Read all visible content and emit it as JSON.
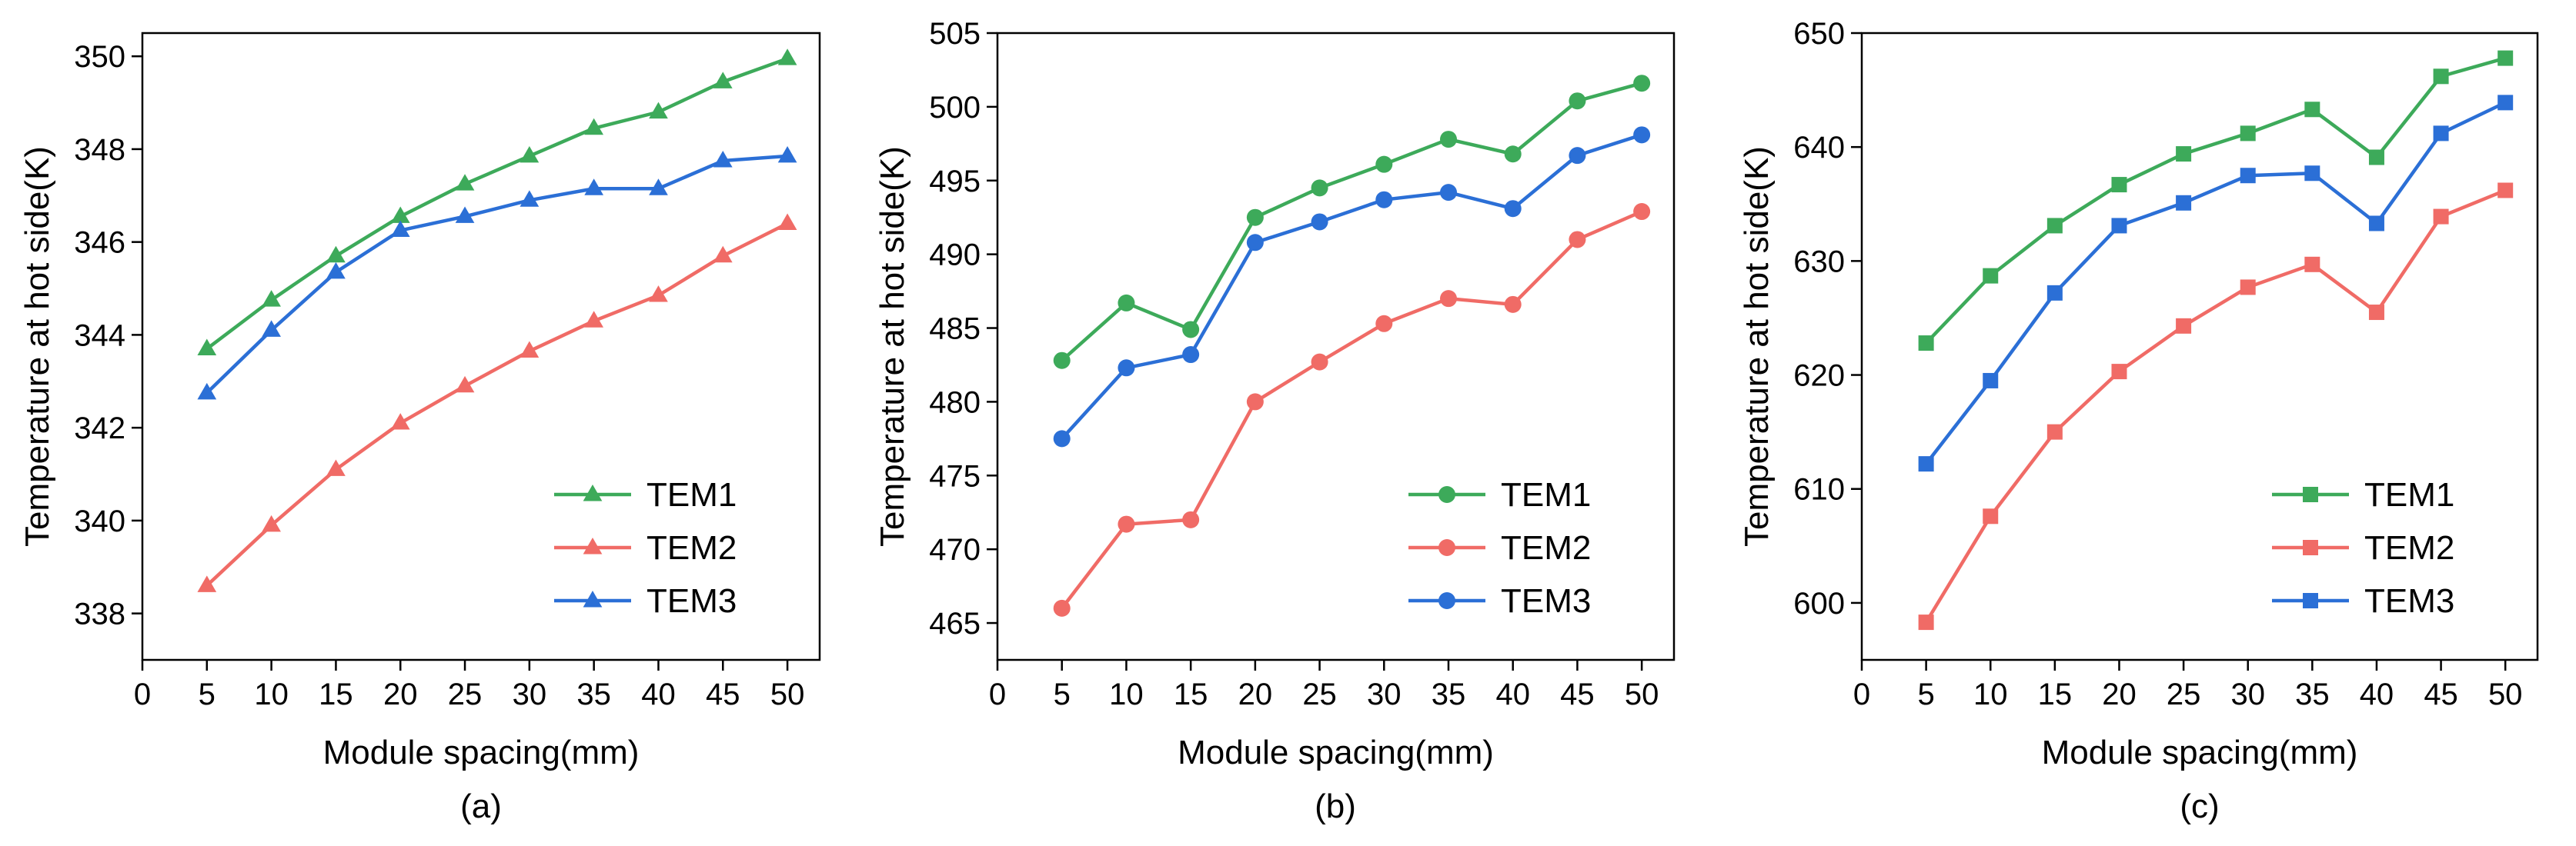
{
  "colors": {
    "TEM1": "#3daa5a",
    "TEM2": "#f06b66",
    "TEM3": "#2b6fd6"
  },
  "chart_data": [
    {
      "type": "line",
      "panel_label": "(a)",
      "xlabel": "Module spacing(mm)",
      "ylabel": "Temperature at hot side(K)",
      "marker": "triangle",
      "xlim": [
        0,
        52.5
      ],
      "xticks": [
        0,
        5,
        10,
        15,
        20,
        25,
        30,
        35,
        40,
        45,
        50
      ],
      "ylim": [
        337,
        350.5
      ],
      "yticks": [
        338,
        340,
        342,
        344,
        346,
        348,
        350
      ],
      "x": [
        5,
        10,
        15,
        20,
        25,
        30,
        35,
        40,
        45,
        50
      ],
      "series": [
        {
          "name": "TEM1",
          "color": "#3daa5a",
          "values": [
            343.7,
            344.75,
            345.7,
            346.55,
            347.25,
            347.85,
            348.45,
            348.8,
            349.45,
            349.95
          ]
        },
        {
          "name": "TEM2",
          "color": "#f06b66",
          "values": [
            338.6,
            339.9,
            341.1,
            342.1,
            342.9,
            343.65,
            344.3,
            344.85,
            345.7,
            346.4
          ]
        },
        {
          "name": "TEM3",
          "color": "#2b6fd6",
          "values": [
            342.75,
            344.1,
            345.35,
            346.25,
            346.55,
            346.9,
            347.15,
            347.15,
            347.75,
            347.85
          ]
        }
      ],
      "legend": "bottom-right"
    },
    {
      "type": "line",
      "panel_label": "(b)",
      "xlabel": "Module spacing(mm)",
      "ylabel": "Temperature at hot side(K)",
      "marker": "circle",
      "xlim": [
        0,
        52.5
      ],
      "xticks": [
        0,
        5,
        10,
        15,
        20,
        25,
        30,
        35,
        40,
        45,
        50
      ],
      "ylim": [
        462.5,
        505
      ],
      "yticks": [
        465,
        470,
        475,
        480,
        485,
        490,
        495,
        500,
        505
      ],
      "x": [
        5,
        10,
        15,
        20,
        25,
        30,
        35,
        40,
        45,
        50
      ],
      "series": [
        {
          "name": "TEM1",
          "color": "#3daa5a",
          "values": [
            482.8,
            486.7,
            484.9,
            492.5,
            494.5,
            496.1,
            497.8,
            496.8,
            500.4,
            501.6
          ]
        },
        {
          "name": "TEM2",
          "color": "#f06b66",
          "values": [
            466.0,
            471.7,
            472.0,
            480.0,
            482.7,
            485.3,
            487.0,
            486.6,
            491.0,
            492.9
          ]
        },
        {
          "name": "TEM3",
          "color": "#2b6fd6",
          "values": [
            477.5,
            482.3,
            483.2,
            490.8,
            492.2,
            493.7,
            494.2,
            493.1,
            496.7,
            498.1
          ]
        }
      ],
      "legend": "bottom-right"
    },
    {
      "type": "line",
      "panel_label": "(c)",
      "xlabel": "Module spacing(mm)",
      "ylabel": "Temperature at hot side(K)",
      "marker": "square",
      "xlim": [
        0,
        52.5
      ],
      "xticks": [
        0,
        5,
        10,
        15,
        20,
        25,
        30,
        35,
        40,
        45,
        50
      ],
      "ylim": [
        595,
        650
      ],
      "yticks": [
        600,
        610,
        620,
        630,
        640,
        650
      ],
      "x": [
        5,
        10,
        15,
        20,
        25,
        30,
        35,
        40,
        45,
        50
      ],
      "series": [
        {
          "name": "TEM1",
          "color": "#3daa5a",
          "values": [
            622.8,
            628.7,
            633.1,
            636.7,
            639.4,
            641.2,
            643.3,
            639.1,
            646.2,
            647.8
          ]
        },
        {
          "name": "TEM2",
          "color": "#f06b66",
          "values": [
            598.3,
            607.6,
            615.0,
            620.3,
            624.3,
            627.7,
            629.7,
            625.5,
            633.9,
            636.2
          ]
        },
        {
          "name": "TEM3",
          "color": "#2b6fd6",
          "values": [
            612.2,
            619.5,
            627.2,
            633.1,
            635.1,
            637.5,
            637.7,
            633.3,
            641.2,
            643.9
          ]
        }
      ],
      "legend": "bottom-right"
    }
  ]
}
